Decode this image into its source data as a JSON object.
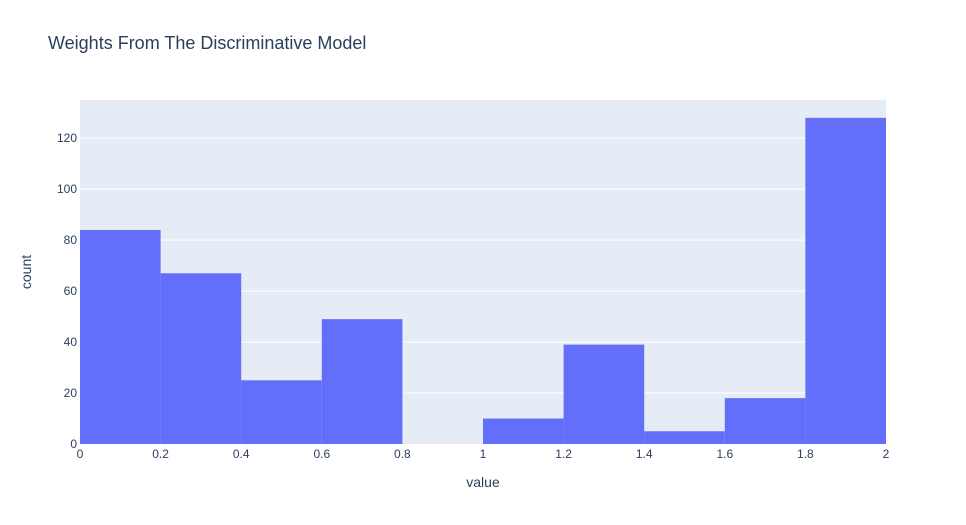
{
  "chart_data": {
    "type": "bar",
    "title": "Weights From The Discriminative Model",
    "xlabel": "value",
    "ylabel": "count",
    "xlim": [
      0,
      2
    ],
    "ylim": [
      0,
      135
    ],
    "bin_width": 0.2,
    "bins": [
      {
        "start": 0.0,
        "end": 0.2,
        "count": 84
      },
      {
        "start": 0.2,
        "end": 0.4,
        "count": 67
      },
      {
        "start": 0.4,
        "end": 0.6,
        "count": 25
      },
      {
        "start": 0.6,
        "end": 0.8,
        "count": 49
      },
      {
        "start": 0.8,
        "end": 1.0,
        "count": 0
      },
      {
        "start": 1.0,
        "end": 1.2,
        "count": 10
      },
      {
        "start": 1.2,
        "end": 1.4,
        "count": 39
      },
      {
        "start": 1.4,
        "end": 1.6,
        "count": 5
      },
      {
        "start": 1.6,
        "end": 1.8,
        "count": 18
      },
      {
        "start": 1.8,
        "end": 2.0,
        "count": 128
      }
    ],
    "x_ticks": [
      {
        "value": 0,
        "label": "0"
      },
      {
        "value": 0.2,
        "label": "0.2"
      },
      {
        "value": 0.4,
        "label": "0.4"
      },
      {
        "value": 0.6,
        "label": "0.6"
      },
      {
        "value": 0.8,
        "label": "0.8"
      },
      {
        "value": 1,
        "label": "1"
      },
      {
        "value": 1.2,
        "label": "1.2"
      },
      {
        "value": 1.4,
        "label": "1.4"
      },
      {
        "value": 1.6,
        "label": "1.6"
      },
      {
        "value": 1.8,
        "label": "1.8"
      },
      {
        "value": 2,
        "label": "2"
      }
    ],
    "y_ticks": [
      {
        "value": 0,
        "label": "0"
      },
      {
        "value": 20,
        "label": "20"
      },
      {
        "value": 40,
        "label": "40"
      },
      {
        "value": 60,
        "label": "60"
      },
      {
        "value": 80,
        "label": "80"
      },
      {
        "value": 100,
        "label": "100"
      },
      {
        "value": 120,
        "label": "120"
      }
    ],
    "grid": true,
    "colors": {
      "bar": "#636efa",
      "plot_background": "#e5ecf6",
      "grid": "#ffffff",
      "text": "#2a3f5f"
    }
  }
}
